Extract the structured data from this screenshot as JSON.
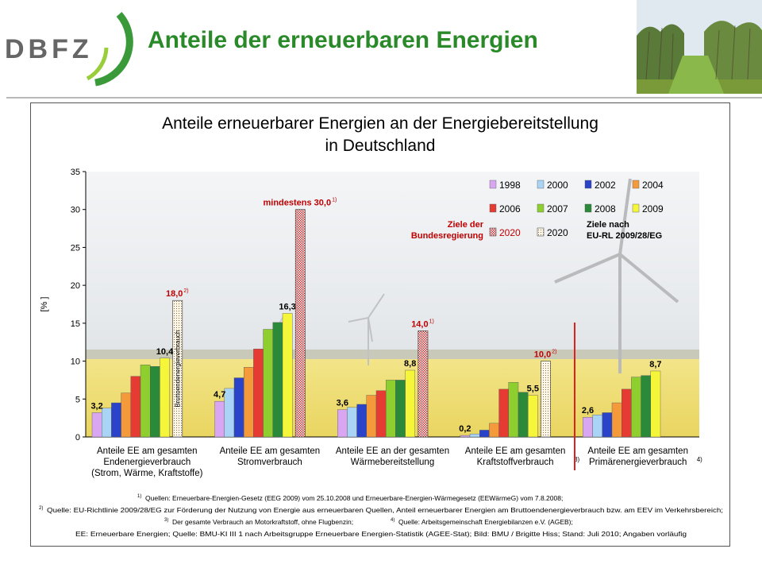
{
  "header": {
    "logo_text": "DBFZ",
    "title": "Anteile der erneuerbaren Energien"
  },
  "colors": {
    "brand_green": "#2a8a2a",
    "target_red": "#c00000",
    "series": [
      "#d9a6f2",
      "#a9d4f5",
      "#2a43c8",
      "#f59a3a",
      "#e53b32",
      "#8ecf2f",
      "#2a8a3a",
      "#f5f53a"
    ]
  },
  "chart_data": {
    "type": "bar",
    "title_line1": "Anteile erneuerbarer Energien an der Energiebereitstellung",
    "title_line2": "in Deutschland",
    "ylabel": "[% ]",
    "ylim": [
      0,
      35
    ],
    "yticks": [
      0,
      5,
      10,
      15,
      20,
      25,
      30,
      35
    ],
    "categories": [
      {
        "line1": "Anteile EE am gesamten",
        "line2": "Endenergieverbrauch",
        "line3": "(Strom, Wärme, Kraftstoffe)",
        "sup": ""
      },
      {
        "line1": "Anteile EE am gesamten",
        "line2": "Stromverbrauch",
        "line3": "",
        "sup": ""
      },
      {
        "line1": "Anteile EE an der gesamten",
        "line2": "Wärmebereitstellung",
        "line3": "",
        "sup": ""
      },
      {
        "line1": "Anteile EE am gesamten",
        "line2": "Kraftstoffverbrauch",
        "line3": "",
        "sup": "3)"
      },
      {
        "line1": "Anteile EE am gesamten",
        "line2": "Primärenergieverbrauch",
        "line3": "",
        "sup": "4)"
      }
    ],
    "series": [
      {
        "name": "1998",
        "values": [
          3.2,
          4.7,
          3.6,
          0.2,
          2.6
        ]
      },
      {
        "name": "2000",
        "values": [
          3.8,
          6.4,
          3.9,
          0.4,
          2.9
        ]
      },
      {
        "name": "2002",
        "values": [
          4.5,
          7.8,
          4.3,
          0.9,
          3.2
        ]
      },
      {
        "name": "2004",
        "values": [
          5.8,
          9.2,
          5.5,
          1.8,
          4.5
        ]
      },
      {
        "name": "2006",
        "values": [
          8.0,
          11.6,
          6.1,
          6.3,
          6.3
        ]
      },
      {
        "name": "2007",
        "values": [
          9.5,
          14.2,
          7.5,
          7.2,
          7.9
        ]
      },
      {
        "name": "2008",
        "values": [
          9.3,
          15.1,
          7.5,
          5.9,
          8.1
        ]
      },
      {
        "name": "2009",
        "values": [
          10.4,
          16.3,
          8.8,
          5.5,
          8.7
        ]
      }
    ],
    "value_labels": [
      {
        "category": 0,
        "series": 0,
        "text": "3,2"
      },
      {
        "category": 0,
        "series": 7,
        "text": "10,4"
      },
      {
        "category": 1,
        "series": 0,
        "text": "4,7"
      },
      {
        "category": 1,
        "series": 7,
        "text": "16,3"
      },
      {
        "category": 2,
        "series": 0,
        "text": "3,6"
      },
      {
        "category": 2,
        "series": 7,
        "text": "8,8"
      },
      {
        "category": 3,
        "series": 0,
        "text": "0,2"
      },
      {
        "category": 3,
        "series": 7,
        "text": "5,5"
      },
      {
        "category": 4,
        "series": 0,
        "text": "2,6"
      },
      {
        "category": 4,
        "series": 7,
        "text": "8,7"
      }
    ],
    "targets": [
      {
        "category": 0,
        "value": 18.0,
        "label": "18,0",
        "sup": "2)",
        "style": "2020 EU",
        "note": "Bruttoendenergieverbrauch"
      },
      {
        "category": 1,
        "value": 30.0,
        "label": "mindestens 30,0",
        "sup": "1)",
        "style": "2020 national",
        "note": ""
      },
      {
        "category": 2,
        "value": 14.0,
        "label": "14,0",
        "sup": "1)",
        "style": "2020 national",
        "note": ""
      },
      {
        "category": 3,
        "value": 10.0,
        "label": "10,0",
        "sup": "2)",
        "style": "2020 EU",
        "note": ""
      }
    ],
    "legend": {
      "placement": "top-right",
      "national_target_label": "2020",
      "eu_target_label": "2020",
      "national_note_line1": "Ziele der",
      "national_note_line2": "Bundesregierung",
      "eu_note_line1": "Ziele nach",
      "eu_note_line2": "EU-RL 2009/28/EG"
    },
    "grid": false
  },
  "footnotes": {
    "f1_sup": "1)",
    "f1": "Quellen: Erneuerbare-Energien-Gesetz (EEG 2009) vom 25.10.2008 und Erneuerbare-Energien-Wärmegesetz (EEWärmeG) vom 7.8.2008;",
    "f2_sup": "2)",
    "f2": "Quelle: EU-Richtlinie 2009/28/EG zur Förderung der Nutzung von Energie aus erneuerbaren Quellen, Anteil erneuerbarer Energien am Bruttoendenergieverbrauch bzw. am EEV im Verkehrsbereich;",
    "f3_sup": "3)",
    "f3": "Der gesamte Verbrauch an Motorkraftstoff, ohne Flugbenzin;",
    "f4_sup": "4)",
    "f4": "Quelle: Arbeitsgemeinschaft Energiebilanzen e.V. (AGEB);",
    "f5": "EE: Erneuerbare Energien; Quelle: BMU-KI III 1 nach Arbeitsgruppe Erneuerbare Energien-Statistik (AGEE-Stat); Bild: BMU / Brigitte Hiss; Stand: Juli 2010; Angaben vorläufig"
  }
}
